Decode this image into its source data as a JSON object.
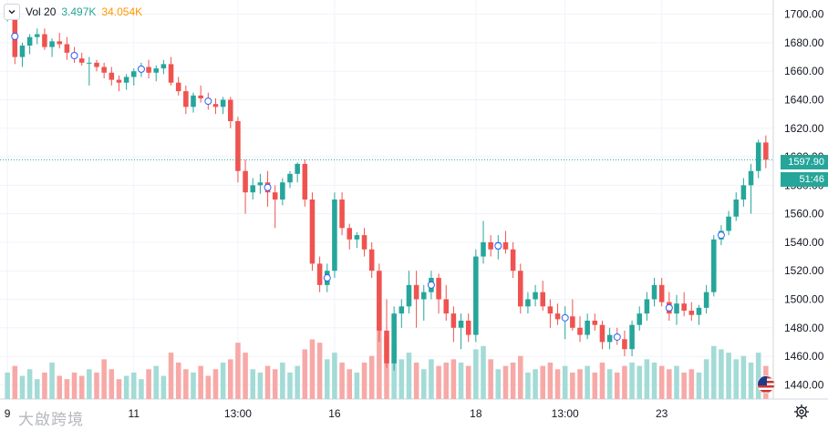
{
  "legend": {
    "label": "Vol 20",
    "value_current": "3.497K",
    "value_ma": "34.054K"
  },
  "price_badge": {
    "price": "1597.90",
    "countdown": "51:46"
  },
  "watermark": "大啟跨境",
  "colors": {
    "up": "#26a69a",
    "down": "#ef5350",
    "vol_up": "#a3dbd6",
    "vol_down": "#f7a9a7",
    "grid": "#f0f3fa",
    "axis_text": "#131722"
  },
  "chart_data": {
    "type": "candlestick",
    "title": "",
    "ylim": [
      1430,
      1710
    ],
    "y_ticks": [
      1440,
      1460,
      1480,
      1500,
      1520,
      1540,
      1560,
      1580,
      1600,
      1620,
      1640,
      1660,
      1680,
      1700
    ],
    "x_ticks": [
      "9",
      "11",
      "13:00",
      "16",
      "18",
      "13:00",
      "23"
    ],
    "last_price": 1597.9,
    "volume_ma_label": "Vol 20",
    "volume_current": "3.497K",
    "volume_ma": "34.054K",
    "candles": [
      [
        1697,
        1702,
        1695,
        1699,
        40
      ],
      [
        1699,
        1701,
        1665,
        1670,
        50
      ],
      [
        1670,
        1680,
        1663,
        1678,
        35
      ],
      [
        1678,
        1686,
        1672,
        1684,
        45
      ],
      [
        1684,
        1690,
        1679,
        1686,
        30
      ],
      [
        1686,
        1690,
        1675,
        1677,
        40
      ],
      [
        1677,
        1683,
        1670,
        1681,
        55
      ],
      [
        1681,
        1687,
        1676,
        1679,
        35
      ],
      [
        1679,
        1684,
        1668,
        1673,
        30
      ],
      [
        1673,
        1677,
        1666,
        1669,
        40
      ],
      [
        1669,
        1673,
        1664,
        1666,
        35
      ],
      [
        1666,
        1670,
        1650,
        1666,
        45
      ],
      [
        1666,
        1668,
        1660,
        1663,
        40
      ],
      [
        1663,
        1666,
        1655,
        1659,
        60
      ],
      [
        1659,
        1663,
        1650,
        1654,
        45
      ],
      [
        1654,
        1657,
        1646,
        1652,
        30
      ],
      [
        1652,
        1658,
        1647,
        1656,
        35
      ],
      [
        1656,
        1662,
        1650,
        1660,
        40
      ],
      [
        1660,
        1666,
        1656,
        1663,
        30
      ],
      [
        1663,
        1668,
        1655,
        1659,
        45
      ],
      [
        1659,
        1664,
        1653,
        1662,
        50
      ],
      [
        1662,
        1668,
        1658,
        1665,
        35
      ],
      [
        1665,
        1670,
        1650,
        1652,
        70
      ],
      [
        1652,
        1656,
        1643,
        1646,
        55
      ],
      [
        1646,
        1650,
        1630,
        1635,
        45
      ],
      [
        1635,
        1645,
        1631,
        1643,
        40
      ],
      [
        1643,
        1650,
        1638,
        1641,
        50
      ],
      [
        1641,
        1645,
        1633,
        1637,
        35
      ],
      [
        1637,
        1641,
        1630,
        1635,
        45
      ],
      [
        1635,
        1642,
        1630,
        1640,
        55
      ],
      [
        1640,
        1642,
        1620,
        1625,
        60
      ],
      [
        1625,
        1628,
        1582,
        1590,
        85
      ],
      [
        1590,
        1598,
        1560,
        1575,
        70
      ],
      [
        1575,
        1585,
        1570,
        1580,
        45
      ],
      [
        1580,
        1588,
        1574,
        1582,
        40
      ],
      [
        1582,
        1590,
        1565,
        1575,
        50
      ],
      [
        1575,
        1580,
        1550,
        1570,
        45
      ],
      [
        1570,
        1585,
        1566,
        1582,
        55
      ],
      [
        1582,
        1590,
        1578,
        1588,
        40
      ],
      [
        1588,
        1596,
        1582,
        1595,
        50
      ],
      [
        1595,
        1598,
        1565,
        1570,
        75
      ],
      [
        1570,
        1575,
        1520,
        1525,
        90
      ],
      [
        1525,
        1530,
        1505,
        1510,
        85
      ],
      [
        1510,
        1525,
        1505,
        1520,
        60
      ],
      [
        1520,
        1575,
        1515,
        1570,
        70
      ],
      [
        1570,
        1575,
        1545,
        1550,
        55
      ],
      [
        1550,
        1553,
        1535,
        1542,
        45
      ],
      [
        1542,
        1547,
        1536,
        1545,
        40
      ],
      [
        1545,
        1550,
        1530,
        1535,
        55
      ],
      [
        1535,
        1540,
        1515,
        1520,
        65
      ],
      [
        1520,
        1525,
        1470,
        1478,
        110
      ],
      [
        1478,
        1500,
        1452,
        1455,
        95
      ],
      [
        1455,
        1495,
        1450,
        1490,
        80
      ],
      [
        1490,
        1500,
        1480,
        1495,
        60
      ],
      [
        1495,
        1520,
        1490,
        1510,
        70
      ],
      [
        1510,
        1520,
        1480,
        1500,
        55
      ],
      [
        1500,
        1510,
        1485,
        1505,
        45
      ],
      [
        1505,
        1520,
        1500,
        1515,
        60
      ],
      [
        1515,
        1518,
        1490,
        1500,
        50
      ],
      [
        1500,
        1510,
        1485,
        1490,
        55
      ],
      [
        1490,
        1495,
        1470,
        1480,
        60
      ],
      [
        1480,
        1490,
        1465,
        1485,
        55
      ],
      [
        1485,
        1490,
        1470,
        1475,
        50
      ],
      [
        1475,
        1535,
        1470,
        1530,
        75
      ],
      [
        1530,
        1555,
        1525,
        1540,
        80
      ],
      [
        1540,
        1545,
        1530,
        1535,
        60
      ],
      [
        1535,
        1545,
        1528,
        1540,
        45
      ],
      [
        1540,
        1548,
        1532,
        1535,
        50
      ],
      [
        1535,
        1540,
        1515,
        1520,
        55
      ],
      [
        1520,
        1525,
        1490,
        1495,
        65
      ],
      [
        1495,
        1505,
        1490,
        1500,
        40
      ],
      [
        1500,
        1510,
        1495,
        1505,
        45
      ],
      [
        1505,
        1513,
        1492,
        1495,
        50
      ],
      [
        1495,
        1500,
        1480,
        1490,
        55
      ],
      [
        1490,
        1497,
        1482,
        1486,
        45
      ],
      [
        1486,
        1495,
        1472,
        1488,
        50
      ],
      [
        1488,
        1500,
        1478,
        1480,
        40
      ],
      [
        1480,
        1488,
        1470,
        1475,
        45
      ],
      [
        1475,
        1490,
        1472,
        1485,
        50
      ],
      [
        1485,
        1490,
        1478,
        1482,
        40
      ],
      [
        1482,
        1485,
        1465,
        1470,
        55
      ],
      [
        1470,
        1480,
        1465,
        1475,
        45
      ],
      [
        1475,
        1480,
        1468,
        1472,
        40
      ],
      [
        1472,
        1478,
        1460,
        1465,
        50
      ],
      [
        1465,
        1485,
        1460,
        1482,
        55
      ],
      [
        1482,
        1495,
        1478,
        1490,
        50
      ],
      [
        1490,
        1505,
        1485,
        1500,
        60
      ],
      [
        1500,
        1515,
        1495,
        1510,
        55
      ],
      [
        1510,
        1515,
        1495,
        1498,
        50
      ],
      [
        1498,
        1505,
        1485,
        1490,
        45
      ],
      [
        1490,
        1503,
        1482,
        1497,
        50
      ],
      [
        1497,
        1505,
        1488,
        1492,
        40
      ],
      [
        1492,
        1498,
        1485,
        1489,
        45
      ],
      [
        1489,
        1496,
        1482,
        1494,
        40
      ],
      [
        1494,
        1510,
        1490,
        1505,
        60
      ],
      [
        1505,
        1545,
        1502,
        1542,
        80
      ],
      [
        1542,
        1552,
        1538,
        1548,
        75
      ],
      [
        1548,
        1562,
        1545,
        1558,
        70
      ],
      [
        1558,
        1575,
        1555,
        1570,
        60
      ],
      [
        1570,
        1585,
        1565,
        1580,
        65
      ],
      [
        1580,
        1595,
        1560,
        1590,
        55
      ],
      [
        1590,
        1612,
        1585,
        1610,
        70
      ],
      [
        1610,
        1615,
        1592,
        1598,
        50
      ]
    ]
  }
}
